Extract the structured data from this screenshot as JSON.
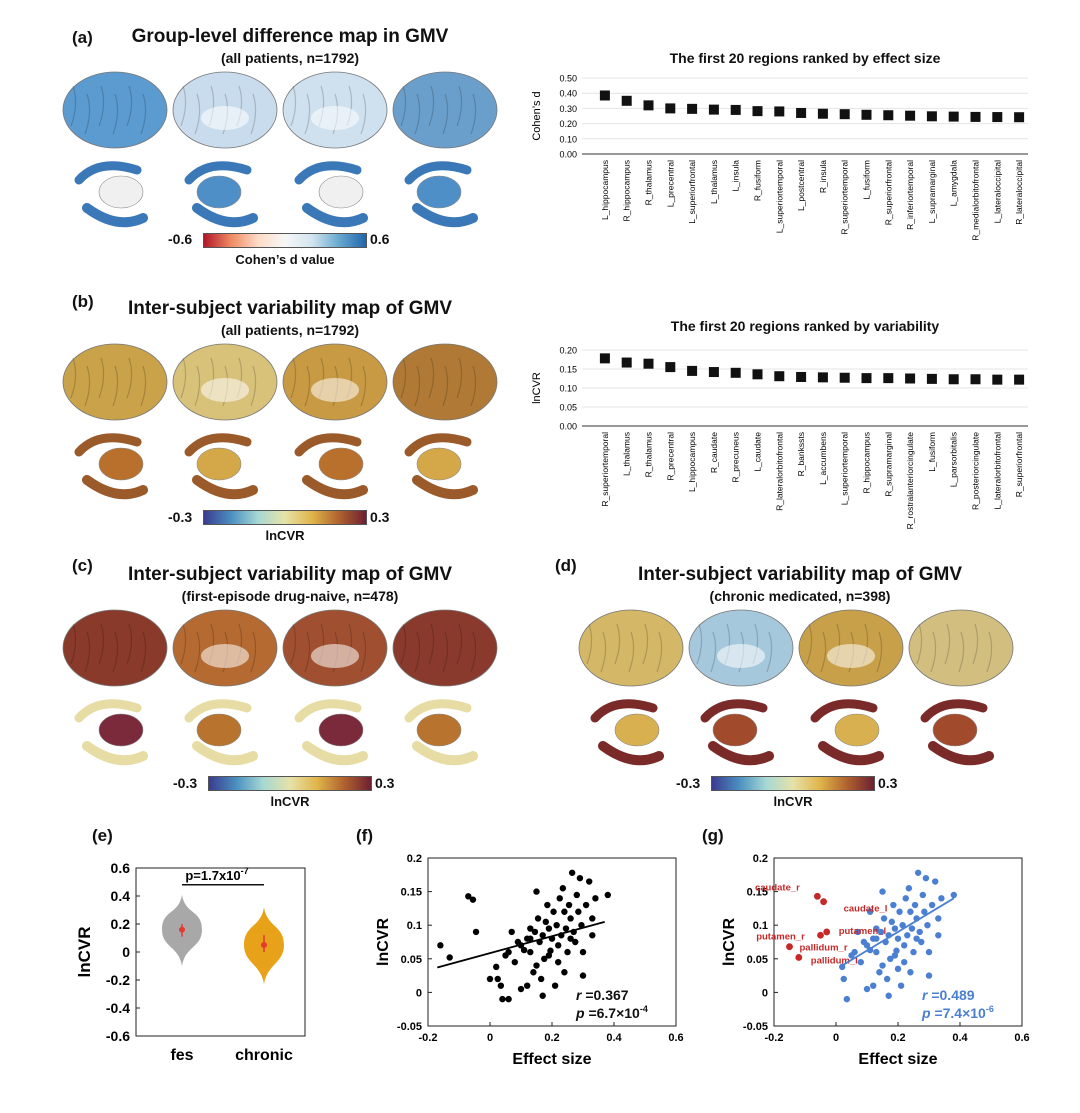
{
  "panels": {
    "a": {
      "label": "(a)",
      "title": "Group-level difference map in GMV",
      "subtitle": "(all patients, n=1792)",
      "colorbar": {
        "min": "-0.6",
        "max": "0.6",
        "label": "Cohen’s d value",
        "colors": [
          "#b2182b",
          "#ef8a62",
          "#fddbc7",
          "#f7f7f7",
          "#d1e5f0",
          "#67a9cf",
          "#2166ac"
        ]
      }
    },
    "b": {
      "label": "(b)",
      "title": "Inter-subject variability map of GMV",
      "subtitle": "(all patients, n=1792)",
      "colorbar": {
        "min": "-0.3",
        "max": "0.3",
        "label": "lnCVR",
        "colors": [
          "#3b3b8f",
          "#4a8fc0",
          "#a6d8d4",
          "#e6e2a8",
          "#e0b54a",
          "#b0622e",
          "#6e2032"
        ]
      }
    },
    "c": {
      "label": "(c)",
      "title": "Inter-subject variability map of GMV",
      "subtitle": "(first-episode drug-naive, n=478)",
      "colorbar": {
        "min": "-0.3",
        "max": "0.3",
        "label": "lnCVR"
      }
    },
    "d": {
      "label": "(d)",
      "title": "Inter-subject variability map of GMV",
      "subtitle": "(chronic medicated, n=398)",
      "colorbar": {
        "min": "-0.3",
        "max": "0.3",
        "label": "lnCVR"
      }
    },
    "e": {
      "label": "(e)"
    },
    "f": {
      "label": "(f)"
    },
    "g": {
      "label": "(g)"
    }
  },
  "brain_colors": {
    "a": {
      "cortex": [
        "#5b9bd0",
        "#c9dced",
        "#cfe0ef",
        "#6a9fcc"
      ],
      "subcortex": [
        "#f0f0f0",
        "#4f8fc8",
        "#3a78b8"
      ]
    },
    "b": {
      "cortex": [
        "#c9a24a",
        "#d8c27a",
        "#c99a44",
        "#b07a36"
      ],
      "subcortex": [
        "#b8702c",
        "#d4a848",
        "#9a5a2a"
      ]
    },
    "c": {
      "cortex": [
        "#8a3a2a",
        "#b56a32",
        "#a05030",
        "#8a3a2c"
      ],
      "subcortex": [
        "#7a2a3a",
        "#b8742e",
        "#e6dca4"
      ]
    },
    "d": {
      "cortex": [
        "#d4b868",
        "#a6c8dc",
        "#c8a04a",
        "#d2bf80"
      ],
      "subcortex": [
        "#d8b050",
        "#a24a2c",
        "#7a2a28"
      ]
    }
  },
  "chart_data": [
    {
      "id": "ranked-effect",
      "type": "scatter",
      "title": "The first 20 regions ranked by effect size",
      "ylabel": "Cohen’s d",
      "ylim": [
        0,
        0.5
      ],
      "yticks": [
        "0.00",
        "0.10",
        "0.20",
        "0.30",
        "0.40",
        "0.50"
      ],
      "categories": [
        "L_hippocampus",
        "R_hippocampus",
        "R_thalamus",
        "L_precentral",
        "L_superiorfrontal",
        "L_thalamus",
        "L_insula",
        "R_fusiform",
        "L_superiortemporal",
        "L_postcentral",
        "R_insula",
        "R_superiortemporal",
        "L_fusiform",
        "R_superiorfrontal",
        "R_inferiortemporal",
        "L_supramarginal",
        "L_amygdala",
        "R_medialorbitofrontal",
        "L_lateraloccipital",
        "R_lateraloccipital"
      ],
      "values": [
        0.385,
        0.35,
        0.32,
        0.3,
        0.297,
        0.292,
        0.29,
        0.282,
        0.28,
        0.27,
        0.265,
        0.262,
        0.258,
        0.255,
        0.252,
        0.248,
        0.246,
        0.244,
        0.243,
        0.242
      ]
    },
    {
      "id": "ranked-variability",
      "type": "scatter",
      "title": "The first 20 regions ranked by variability",
      "ylabel": "lnCVR",
      "ylim": [
        0,
        0.2
      ],
      "yticks": [
        "0.00",
        "0.05",
        "0.10",
        "0.15",
        "0.20"
      ],
      "categories": [
        "R_superiortemporal",
        "L_thalamus",
        "R_thalamus",
        "R_precentral",
        "L_hippocampus",
        "R_caudate",
        "R_precuneus",
        "L_caudate",
        "R_lateralorbitofrontal",
        "R_bankssts",
        "L_accumbens",
        "L_superiortemporal",
        "R_hippocampus",
        "R_supramarginal",
        "R_rostralanteriorcingulate",
        "L_fusiform",
        "L_parsorbitalis",
        "R_posteriorcingulate",
        "L_lateralorbitofrontal",
        "R_superiorfrontal"
      ],
      "values": [
        0.178,
        0.167,
        0.164,
        0.155,
        0.145,
        0.142,
        0.14,
        0.136,
        0.131,
        0.129,
        0.128,
        0.127,
        0.126,
        0.126,
        0.125,
        0.124,
        0.123,
        0.123,
        0.122,
        0.122
      ]
    },
    {
      "id": "violin",
      "type": "violin",
      "ylabel": "lnCVR",
      "ylim": [
        -0.6,
        0.6
      ],
      "yticks": [
        "0.6",
        "0.4",
        "0.2",
        "0",
        "-0.2",
        "-0.4",
        "-0.6"
      ],
      "categories": [
        "fes",
        "chronic"
      ],
      "colors": [
        "#a8a8a8",
        "#e8a21a"
      ],
      "means": [
        0.16,
        0.05
      ],
      "sd_low": [
        0.11,
        0.0
      ],
      "sd_high": [
        0.2,
        0.12
      ],
      "ranges": [
        [
          -0.1,
          0.41
        ],
        [
          -0.23,
          0.32
        ]
      ],
      "annotation": "p=1.7x10",
      "annotation_exp": "-7"
    },
    {
      "id": "scatter-f",
      "type": "scatter",
      "xlabel": "Effect size",
      "ylabel": "lnCVR",
      "xlim": [
        -0.2,
        0.6
      ],
      "ylim": [
        -0.05,
        0.2
      ],
      "xticks": [
        "-0.2",
        "0",
        "0.2",
        "0.4",
        "0.6"
      ],
      "yticks": [
        "0.2",
        "0.15",
        "0.1",
        "0.05",
        "0",
        "-0.05"
      ],
      "color": "#000000",
      "fit": [
        [
          -0.17,
          0.037
        ],
        [
          0.37,
          0.105
        ]
      ],
      "r_label": "r",
      "r_value": "=0.367",
      "p_label": "p",
      "p_value": "=6.7×10",
      "p_exp": "-4",
      "points": [
        [
          -0.16,
          0.07
        ],
        [
          -0.13,
          0.052
        ],
        [
          -0.07,
          0.143
        ],
        [
          -0.055,
          0.138
        ],
        [
          -0.045,
          0.09
        ],
        [
          0.02,
          0.038
        ],
        [
          0.025,
          0.02
        ],
        [
          0.035,
          0.01
        ],
        [
          0.04,
          -0.01
        ],
        [
          0.05,
          0.055
        ],
        [
          0.06,
          0.06
        ],
        [
          0.07,
          0.09
        ],
        [
          0.08,
          0.045
        ],
        [
          0.09,
          0.075
        ],
        [
          0.1,
          0.07
        ],
        [
          0.11,
          0.063
        ],
        [
          0.12,
          0.08
        ],
        [
          0.12,
          0.01
        ],
        [
          0.13,
          0.095
        ],
        [
          0.13,
          0.06
        ],
        [
          0.14,
          0.03
        ],
        [
          0.145,
          0.09
        ],
        [
          0.15,
          0.04
        ],
        [
          0.155,
          0.11
        ],
        [
          0.16,
          0.075
        ],
        [
          0.165,
          0.02
        ],
        [
          0.17,
          0.085
        ],
        [
          0.175,
          0.05
        ],
        [
          0.18,
          0.105
        ],
        [
          0.185,
          0.13
        ],
        [
          0.19,
          0.095
        ],
        [
          0.195,
          0.062
        ],
        [
          0.2,
          0.08
        ],
        [
          0.205,
          0.12
        ],
        [
          0.21,
          0.01
        ],
        [
          0.215,
          0.1
        ],
        [
          0.22,
          0.07
        ],
        [
          0.225,
          0.14
        ],
        [
          0.23,
          0.085
        ],
        [
          0.235,
          0.155
        ],
        [
          0.24,
          0.12
        ],
        [
          0.245,
          0.095
        ],
        [
          0.25,
          0.06
        ],
        [
          0.255,
          0.13
        ],
        [
          0.26,
          0.11
        ],
        [
          0.265,
          0.178
        ],
        [
          0.27,
          0.09
        ],
        [
          0.275,
          0.075
        ],
        [
          0.28,
          0.145
        ],
        [
          0.285,
          0.12
        ],
        [
          0.29,
          0.17
        ],
        [
          0.295,
          0.1
        ],
        [
          0.3,
          0.06
        ],
        [
          0.31,
          0.13
        ],
        [
          0.32,
          0.165
        ],
        [
          0.33,
          0.085
        ],
        [
          0.34,
          0.14
        ],
        [
          0.15,
          0.15
        ],
        [
          0.17,
          -0.005
        ],
        [
          0.1,
          0.005
        ],
        [
          0.22,
          0.045
        ],
        [
          0.24,
          0.03
        ],
        [
          0.3,
          0.025
        ],
        [
          0.33,
          0.11
        ],
        [
          0.38,
          0.145
        ],
        [
          0.0,
          0.02
        ],
        [
          0.06,
          -0.01
        ],
        [
          0.13,
          0.08
        ],
        [
          0.19,
          0.055
        ],
        [
          0.26,
          0.08
        ]
      ]
    },
    {
      "id": "scatter-g",
      "type": "scatter",
      "xlabel": "Effect size",
      "ylabel": "lnCVR",
      "xlim": [
        -0.2,
        0.6
      ],
      "ylim": [
        -0.05,
        0.2
      ],
      "xticks": [
        "-0.2",
        "0",
        "0.2",
        "0.4",
        "0.6"
      ],
      "yticks": [
        "0.2",
        "0.15",
        "0.1",
        "0.05",
        "0",
        "-0.05"
      ],
      "color": "#4a7fd1",
      "highlight_color": "#c62828",
      "fit": [
        [
          0.02,
          0.04
        ],
        [
          0.38,
          0.14
        ]
      ],
      "r_label": "r",
      "r_value": "=0.489",
      "p_label": "p",
      "p_value": "=7.4×10",
      "p_exp": "-6",
      "highlights": [
        {
          "name": "caudate_r",
          "x": -0.06,
          "y": 0.143
        },
        {
          "name": "caudate_l",
          "x": -0.04,
          "y": 0.135
        },
        {
          "name": "putamen_r",
          "x": -0.05,
          "y": 0.085
        },
        {
          "name": "putamen_l",
          "x": -0.03,
          "y": 0.09
        },
        {
          "name": "pallidum_r",
          "x": -0.15,
          "y": 0.068
        },
        {
          "name": "pallidum_l",
          "x": -0.12,
          "y": 0.052
        }
      ],
      "points": [
        [
          0.02,
          0.038
        ],
        [
          0.025,
          0.02
        ],
        [
          0.035,
          -0.01
        ],
        [
          0.05,
          0.055
        ],
        [
          0.06,
          0.06
        ],
        [
          0.07,
          0.09
        ],
        [
          0.08,
          0.045
        ],
        [
          0.09,
          0.075
        ],
        [
          0.1,
          0.07
        ],
        [
          0.11,
          0.063
        ],
        [
          0.12,
          0.08
        ],
        [
          0.12,
          0.01
        ],
        [
          0.13,
          0.095
        ],
        [
          0.13,
          0.06
        ],
        [
          0.14,
          0.03
        ],
        [
          0.145,
          0.09
        ],
        [
          0.15,
          0.04
        ],
        [
          0.155,
          0.11
        ],
        [
          0.16,
          0.075
        ],
        [
          0.165,
          0.02
        ],
        [
          0.17,
          0.085
        ],
        [
          0.175,
          0.05
        ],
        [
          0.18,
          0.105
        ],
        [
          0.185,
          0.13
        ],
        [
          0.19,
          0.095
        ],
        [
          0.195,
          0.062
        ],
        [
          0.2,
          0.08
        ],
        [
          0.205,
          0.12
        ],
        [
          0.21,
          0.01
        ],
        [
          0.215,
          0.1
        ],
        [
          0.22,
          0.07
        ],
        [
          0.225,
          0.14
        ],
        [
          0.23,
          0.085
        ],
        [
          0.235,
          0.155
        ],
        [
          0.24,
          0.12
        ],
        [
          0.245,
          0.095
        ],
        [
          0.25,
          0.06
        ],
        [
          0.255,
          0.13
        ],
        [
          0.26,
          0.11
        ],
        [
          0.265,
          0.178
        ],
        [
          0.27,
          0.09
        ],
        [
          0.275,
          0.075
        ],
        [
          0.28,
          0.145
        ],
        [
          0.285,
          0.12
        ],
        [
          0.29,
          0.17
        ],
        [
          0.295,
          0.1
        ],
        [
          0.3,
          0.06
        ],
        [
          0.31,
          0.13
        ],
        [
          0.32,
          0.165
        ],
        [
          0.33,
          0.085
        ],
        [
          0.34,
          0.14
        ],
        [
          0.15,
          0.15
        ],
        [
          0.17,
          -0.005
        ],
        [
          0.1,
          0.005
        ],
        [
          0.22,
          0.045
        ],
        [
          0.24,
          0.03
        ],
        [
          0.3,
          0.025
        ],
        [
          0.33,
          0.11
        ],
        [
          0.38,
          0.145
        ],
        [
          0.13,
          0.08
        ],
        [
          0.19,
          0.055
        ],
        [
          0.26,
          0.08
        ],
        [
          0.11,
          0.12
        ],
        [
          0.2,
          0.035
        ]
      ]
    }
  ]
}
